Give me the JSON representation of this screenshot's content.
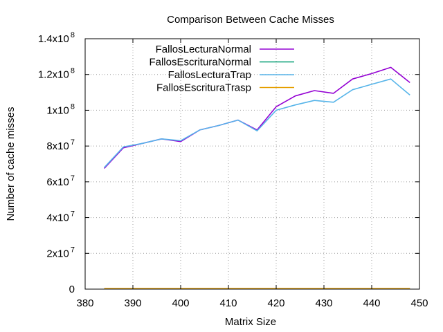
{
  "chart_data": {
    "type": "line",
    "title": "Comparison Between Cache Misses",
    "xlabel": "Matrix Size",
    "ylabel": "Number of cache misses",
    "xlim": [
      380,
      450
    ],
    "ylim": [
      0,
      140000000
    ],
    "x_ticks": [
      380,
      390,
      400,
      410,
      420,
      430,
      440,
      450
    ],
    "y_ticks": [
      {
        "value": 0,
        "mantissa": "0",
        "exponent": ""
      },
      {
        "value": 20000000,
        "mantissa": "2x10",
        "exponent": "7"
      },
      {
        "value": 40000000,
        "mantissa": "4x10",
        "exponent": "7"
      },
      {
        "value": 60000000,
        "mantissa": "6x10",
        "exponent": "7"
      },
      {
        "value": 80000000,
        "mantissa": "8x10",
        "exponent": "7"
      },
      {
        "value": 100000000,
        "mantissa": "1x10",
        "exponent": "8"
      },
      {
        "value": 120000000,
        "mantissa": "1.2x10",
        "exponent": "8"
      },
      {
        "value": 140000000,
        "mantissa": "1.4x10",
        "exponent": "8"
      }
    ],
    "grid": true,
    "legend_position": "top-right",
    "x": [
      384,
      388,
      392,
      396,
      400,
      404,
      408,
      412,
      416,
      420,
      424,
      428,
      432,
      436,
      440,
      444,
      448
    ],
    "series": [
      {
        "name": "FallosLecturaNormal",
        "color": "#9400d3",
        "values": [
          67500000,
          79000000,
          81500000,
          84000000,
          82500000,
          89000000,
          91500000,
          94500000,
          89000000,
          102000000,
          108000000,
          111000000,
          109500000,
          117500000,
          120500000,
          124000000,
          115500000
        ]
      },
      {
        "name": "FallosEscrituraNormal",
        "color": "#009e73",
        "values": [
          200000,
          200000,
          200000,
          200000,
          200000,
          200000,
          200000,
          200000,
          200000,
          200000,
          200000,
          200000,
          200000,
          200000,
          200000,
          200000,
          200000
        ]
      },
      {
        "name": "FallosLecturaTrap",
        "color": "#56b4e9",
        "values": [
          68000000,
          79500000,
          81500000,
          84000000,
          83000000,
          89000000,
          91500000,
          94500000,
          88500000,
          100000000,
          103000000,
          105500000,
          104500000,
          111500000,
          114500000,
          117500000,
          108500000
        ]
      },
      {
        "name": "FallosEscrituraTrasp",
        "color": "#e69f00",
        "values": [
          300000,
          300000,
          300000,
          300000,
          300000,
          300000,
          300000,
          300000,
          300000,
          300000,
          300000,
          300000,
          300000,
          300000,
          300000,
          300000,
          300000
        ]
      }
    ]
  }
}
